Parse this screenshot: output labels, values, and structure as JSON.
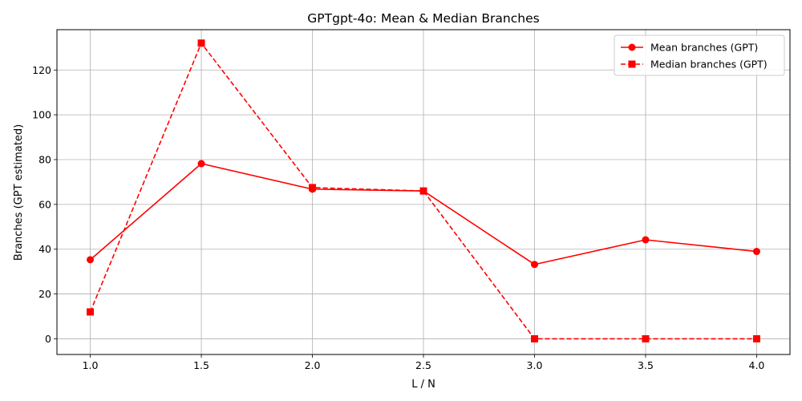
{
  "chart_data": {
    "type": "line",
    "title": "GPTgpt-4o: Mean & Median Branches",
    "xlabel": "L / N",
    "ylabel": "Branches (GPT estimated)",
    "xlim": [
      0.85,
      4.15
    ],
    "ylim": [
      -7,
      138
    ],
    "xticks": [
      1.0,
      1.5,
      2.0,
      2.5,
      3.0,
      3.5,
      4.0
    ],
    "xtick_labels": [
      "1.0",
      "1.5",
      "2.0",
      "2.5",
      "3.0",
      "3.5",
      "4.0"
    ],
    "yticks": [
      0,
      20,
      40,
      60,
      80,
      100,
      120
    ],
    "ytick_labels": [
      "0",
      "20",
      "40",
      "60",
      "80",
      "100",
      "120"
    ],
    "grid": true,
    "legend_position": "top-right",
    "x": [
      1.0,
      1.5,
      2.0,
      2.5,
      3.0,
      3.5,
      4.0
    ],
    "series": [
      {
        "name": "Mean branches (GPT)",
        "values": [
          35.3,
          78.2,
          66.8,
          66.0,
          33.2,
          44.2,
          39.0
        ],
        "color": "#ff0000",
        "line_style": "solid",
        "marker": "circle"
      },
      {
        "name": "Median branches (GPT)",
        "values": [
          12.0,
          132.0,
          67.5,
          66.0,
          0.0,
          0.0,
          0.0
        ],
        "color": "#ff0000",
        "line_style": "dashed",
        "marker": "square"
      }
    ]
  }
}
